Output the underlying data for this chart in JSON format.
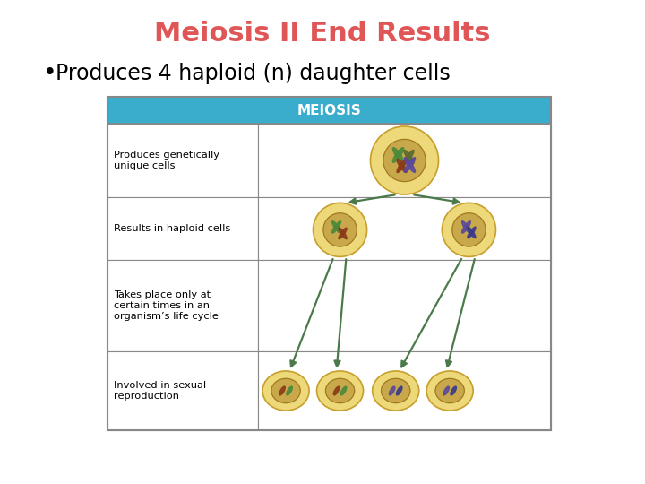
{
  "title": "Meiosis II End Results",
  "title_color": "#E05555",
  "title_fontsize": 22,
  "bullet_text": "Produces 4 haploid (n) daughter cells",
  "bullet_fontsize": 17,
  "background_color": "#FFFFFF",
  "table_header_color": "#3AACCC",
  "table_header_text": "MEIOSIS",
  "table_header_text_color": "#FFFFFF",
  "table_bg_color": "#FFFFFF",
  "table_border_color": "#888888",
  "table_rows": [
    "Produces genetically\nunique cells",
    "Results in haploid cells",
    "Takes place only at\ncertain times in an\norganism’s life cycle",
    "Involved in sexual\nreproduction"
  ],
  "cell_outer_color": "#EDD97A",
  "cell_inner_color": "#C8A84B",
  "arrow_color": "#4A7A4A",
  "figsize": [
    7.2,
    5.4
  ],
  "dpi": 100
}
